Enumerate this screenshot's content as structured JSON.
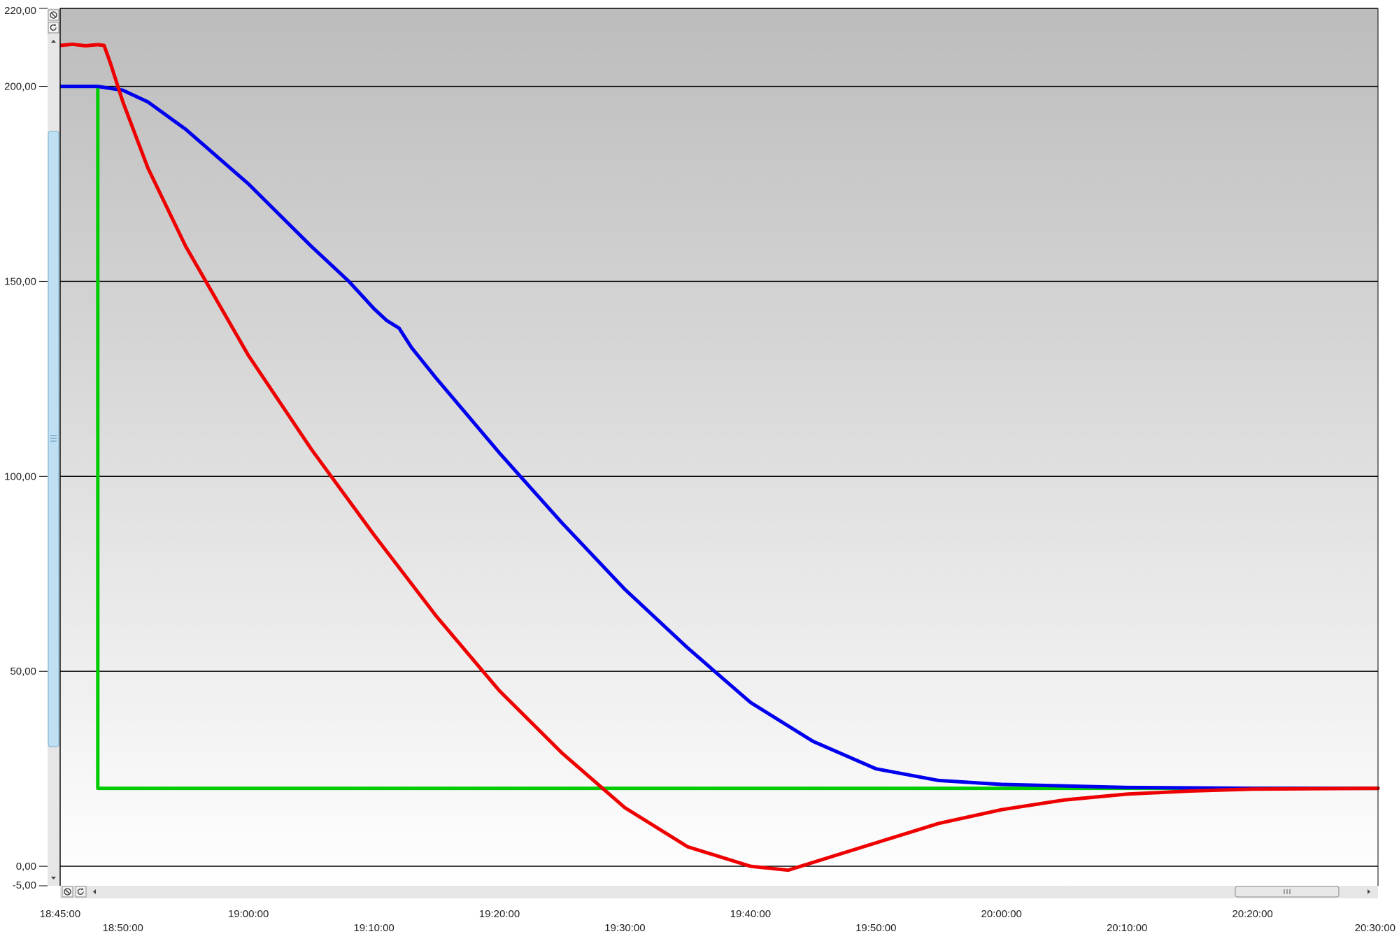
{
  "colors": {
    "plot_top": "#bcbcbc",
    "plot_bottom": "#ffffff",
    "scrollbar_track": "#e6e6e6",
    "scrollbar_thumb_v": "#bfe0f2",
    "scrollbar_thumb_h": "#e8e8e8"
  },
  "icons": {
    "y_zoom_reset": "zoom-reset-icon",
    "y_zoom_undo": "zoom-undo-icon",
    "x_zoom_reset": "zoom-reset-icon",
    "x_zoom_undo": "zoom-undo-icon",
    "scroll_up": "arrow-up-icon",
    "scroll_down": "arrow-down-icon",
    "scroll_left": "arrow-left-icon",
    "scroll_right": "arrow-right-icon",
    "thumb_grip": "grip-icon"
  },
  "chart_data": {
    "type": "line",
    "title": "",
    "xlabel": "",
    "ylabel": "",
    "ylim": [
      -5,
      220
    ],
    "xlim": [
      "18:45:00",
      "20:30:00"
    ],
    "grid": true,
    "y_ticks": [
      {
        "value": 220,
        "label": "220,00"
      },
      {
        "value": 200,
        "label": "200,00"
      },
      {
        "value": 150,
        "label": "150,00"
      },
      {
        "value": 100,
        "label": "100,00"
      },
      {
        "value": 50,
        "label": "50,00"
      },
      {
        "value": 0,
        "label": "0,00"
      },
      {
        "value": -5,
        "label": "-5,00"
      }
    ],
    "x_ticks": [
      {
        "time": "18:45:00",
        "label": "18:45:00"
      },
      {
        "time": "18:50:00",
        "label": "18:50:00"
      },
      {
        "time": "19:00:00",
        "label": "19:00:00"
      },
      {
        "time": "19:10:00",
        "label": "19:10:00"
      },
      {
        "time": "19:20:00",
        "label": "19:20:00"
      },
      {
        "time": "19:30:00",
        "label": "19:30:00"
      },
      {
        "time": "19:40:00",
        "label": "19:40:00"
      },
      {
        "time": "19:50:00",
        "label": "19:50:00"
      },
      {
        "time": "20:00:00",
        "label": "20:00:00"
      },
      {
        "time": "20:10:00",
        "label": "20:10:00"
      },
      {
        "time": "20:20:00",
        "label": "20:20:00"
      },
      {
        "time": "20:30:00",
        "label": "20:30:00"
      }
    ],
    "series": [
      {
        "color": "#00cc00",
        "points": [
          [
            "18:45:00",
            200
          ],
          [
            "18:48:00",
            200
          ],
          [
            "18:48:00",
            20
          ],
          [
            "20:30:00",
            20
          ]
        ]
      },
      {
        "color": "#0000ee",
        "points": [
          [
            "18:45:00",
            200
          ],
          [
            "18:48:00",
            200
          ],
          [
            "18:50:00",
            199
          ],
          [
            "18:52:00",
            196
          ],
          [
            "18:55:00",
            189
          ],
          [
            "19:00:00",
            175
          ],
          [
            "19:05:00",
            159
          ],
          [
            "19:08:00",
            150
          ],
          [
            "19:10:00",
            143
          ],
          [
            "19:11:00",
            140
          ],
          [
            "19:12:00",
            138
          ],
          [
            "19:13:00",
            133
          ],
          [
            "19:15:00",
            125
          ],
          [
            "19:20:00",
            106
          ],
          [
            "19:25:00",
            88
          ],
          [
            "19:30:00",
            71
          ],
          [
            "19:35:00",
            56
          ],
          [
            "19:40:00",
            42
          ],
          [
            "19:45:00",
            32
          ],
          [
            "19:50:00",
            25
          ],
          [
            "19:55:00",
            22
          ],
          [
            "20:00:00",
            21
          ],
          [
            "20:10:00",
            20.2
          ],
          [
            "20:20:00",
            20
          ],
          [
            "20:30:00",
            20
          ]
        ]
      },
      {
        "color": "#ee0000",
        "points": [
          [
            "18:45:00",
            210.5
          ],
          [
            "18:46:00",
            210.8
          ],
          [
            "18:47:00",
            210.4
          ],
          [
            "18:48:00",
            210.7
          ],
          [
            "18:48:30",
            210.5
          ],
          [
            "18:49:00",
            206
          ],
          [
            "18:50:00",
            196
          ],
          [
            "18:52:00",
            179
          ],
          [
            "18:55:00",
            159
          ],
          [
            "19:00:00",
            131
          ],
          [
            "19:05:00",
            107
          ],
          [
            "19:10:00",
            85
          ],
          [
            "19:15:00",
            64
          ],
          [
            "19:20:00",
            45
          ],
          [
            "19:25:00",
            29
          ],
          [
            "19:30:00",
            15
          ],
          [
            "19:35:00",
            5
          ],
          [
            "19:40:00",
            0
          ],
          [
            "19:43:00",
            -1
          ],
          [
            "19:45:00",
            1
          ],
          [
            "19:50:00",
            6
          ],
          [
            "19:55:00",
            11
          ],
          [
            "20:00:00",
            14.5
          ],
          [
            "20:05:00",
            17
          ],
          [
            "20:10:00",
            18.5
          ],
          [
            "20:15:00",
            19.3
          ],
          [
            "20:20:00",
            19.8
          ],
          [
            "20:30:00",
            20
          ]
        ]
      }
    ]
  }
}
